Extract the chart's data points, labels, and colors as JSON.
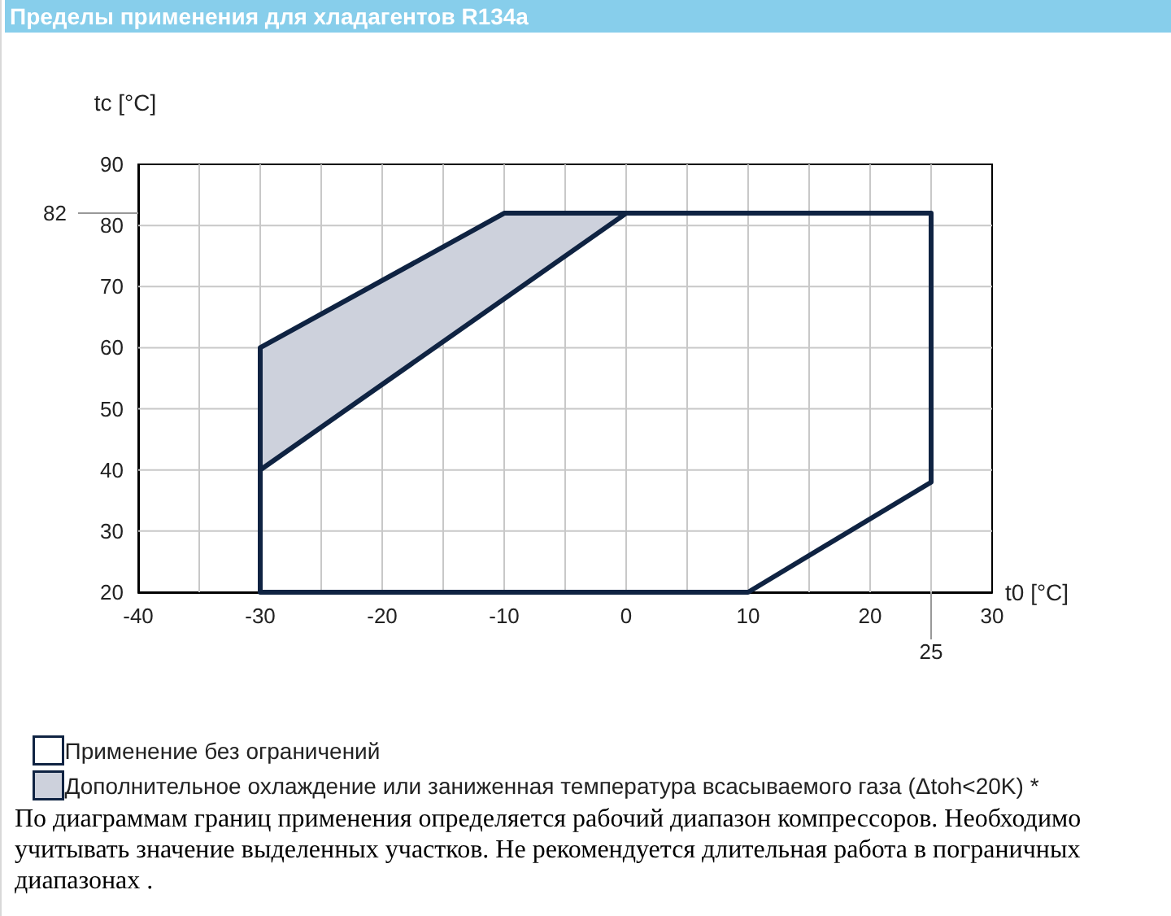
{
  "chart_data": {
    "type": "line",
    "title": "Пределы применения для хладагентов R134a",
    "xlabel": "t0 [°C]",
    "ylabel": "tc [°C]",
    "series": [
      {
        "name": "Применение без ограничений",
        "type": "line",
        "color": "#0f2342",
        "x": [
          -30,
          -30,
          -10,
          0,
          25,
          25,
          10,
          -30,
          -30,
          0
        ],
        "values": [
          40,
          60,
          82,
          82,
          82,
          38,
          20,
          20,
          40,
          82
        ]
      },
      {
        "name": "Дополнительное охлаждение или заниженная температура всасываемого газа (Δtoh<20K) *",
        "type": "area",
        "color": "#cdd1dc",
        "x": [
          -30,
          -30,
          -10,
          0,
          -30
        ],
        "values": [
          40,
          60,
          82,
          82,
          40
        ]
      }
    ],
    "xlim": [
      -40,
      30
    ],
    "ylim": [
      20,
      90
    ],
    "xticks": [
      -40,
      {
        "value": -35,
        "label": null
      },
      -30,
      {
        "value": -25,
        "label": null
      },
      -20,
      {
        "value": -15,
        "label": null
      },
      -10,
      {
        "value": -5,
        "label": null
      },
      0,
      {
        "value": 5,
        "label": null
      },
      10,
      {
        "value": 15,
        "label": null
      },
      20,
      {
        "value": 25,
        "label": null
      },
      30
    ],
    "yticks": [
      20,
      30,
      40,
      50,
      60,
      70,
      80,
      90
    ],
    "grid": true,
    "legend": "bottom left",
    "ref_lines": [
      {
        "axis": "y",
        "value": 82,
        "label": "82",
        "color": "#999999"
      },
      {
        "axis": "x",
        "value": 25,
        "label": "25",
        "color": "#999999"
      }
    ],
    "annotations": [
      "По диаграммам границ применения определяется рабочий диапазон компрессоров. Необходимо учитывать значение выделенных участков. Не рекомендуется длительная работа в пограничных диапазонах ."
    ]
  }
}
